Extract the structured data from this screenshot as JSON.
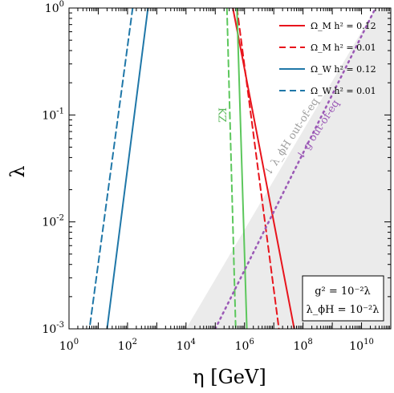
{
  "chart_data": {
    "type": "line",
    "xlabel": "η [GeV]",
    "ylabel": "λ",
    "xscale": "log",
    "yscale": "log",
    "xlim": [
      1,
      100000000000.0
    ],
    "ylim": [
      0.001,
      1
    ],
    "x_ticks": [
      {
        "value": 1,
        "label": "10^0"
      },
      {
        "value": 100,
        "label": "10^2"
      },
      {
        "value": 10000,
        "label": "10^4"
      },
      {
        "value": 1000000,
        "label": "10^6"
      },
      {
        "value": 100000000,
        "label": "10^8"
      },
      {
        "value": 10000000000,
        "label": "10^10"
      }
    ],
    "y_ticks": [
      {
        "value": 0.001,
        "label": "10^-3"
      },
      {
        "value": 0.01,
        "label": "10^-2"
      },
      {
        "value": 0.1,
        "label": "10^-1"
      },
      {
        "value": 1,
        "label": "10^0"
      }
    ],
    "grid": false,
    "legend_position": "top-right",
    "shaded_region": {
      "color": "#ebebeb",
      "boundary": [
        [
          10000,
          0.001
        ],
        [
          30000000000,
          1
        ],
        [
          100000000000,
          1
        ],
        [
          100000000000,
          0.001
        ]
      ]
    },
    "series": [
      {
        "name": "Ω_M h² = 0.12",
        "color": "#e8141c",
        "dash": "solid",
        "legend": true,
        "points": [
          [
            400000,
            1
          ],
          [
            50000000,
            0.001
          ]
        ]
      },
      {
        "name": "Ω_M h² = 0.01",
        "color": "#e8141c",
        "dash": "dashed",
        "legend": true,
        "points": [
          [
            550000,
            1
          ],
          [
            15000000,
            0.001
          ]
        ]
      },
      {
        "name": "Ω_W h² = 0.12",
        "color": "#1f77a8",
        "dash": "solid",
        "legend": true,
        "points": [
          [
            500,
            1
          ],
          [
            20,
            0.001
          ]
        ]
      },
      {
        "name": "Ω_W h² = 0.01",
        "color": "#1f77a8",
        "dash": "dashed",
        "legend": true,
        "points": [
          [
            150,
            1
          ],
          [
            5,
            0.001
          ]
        ]
      },
      {
        "name": "",
        "color": "#5cc75c",
        "dash": "solid",
        "legend": false,
        "points": [
          [
            550000,
            1
          ],
          [
            1200000,
            0.001
          ]
        ]
      },
      {
        "name": "",
        "color": "#5cc75c",
        "dash": "dashed",
        "legend": false,
        "points": [
          [
            250000,
            1
          ],
          [
            500000,
            0.001
          ]
        ]
      },
      {
        "name": "",
        "color": "#9b59b6",
        "dash": "dotted",
        "legend": false,
        "points": [
          [
            100000,
            0.001
          ],
          [
            30000000000,
            1
          ]
        ]
      }
    ],
    "annotations": [
      {
        "text": "KZ",
        "color": "#5cb85c",
        "rotation": 90,
        "x": 130000,
        "y": 0.1
      },
      {
        "text": "↓ λ_ϕH out-of-eq",
        "color": "#a0a0a0",
        "rotation": -57,
        "x": 50000000,
        "y": 0.06
      },
      {
        "text": "↓ g out-of-eq",
        "color": "#9b59b6",
        "rotation": -57,
        "x": 400000000,
        "y": 0.07
      }
    ],
    "text_box": {
      "line1": "g² = 10⁻²λ",
      "line2": "λ_ϕH = 10⁻²λ",
      "position": "bottom-right"
    }
  }
}
